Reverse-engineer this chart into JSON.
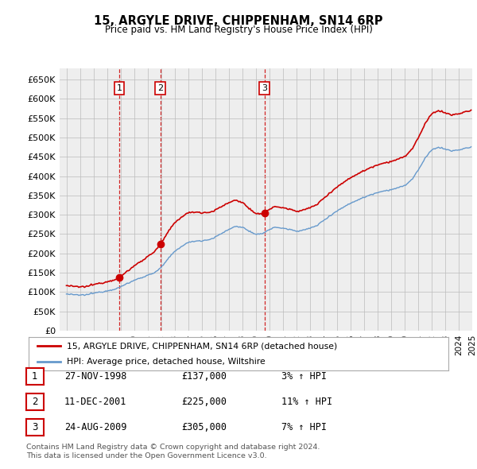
{
  "title": "15, ARGYLE DRIVE, CHIPPENHAM, SN14 6RP",
  "subtitle": "Price paid vs. HM Land Registry's House Price Index (HPI)",
  "legend_line1": "15, ARGYLE DRIVE, CHIPPENHAM, SN14 6RP (detached house)",
  "legend_line2": "HPI: Average price, detached house, Wiltshire",
  "sale_color": "#cc0000",
  "hpi_color": "#6699cc",
  "background_color": "#ffffff",
  "grid_color": "#cccccc",
  "transactions": [
    {
      "label": "1",
      "date_yr": 1998.91,
      "price": 137000,
      "hpi_pct": "3% ↑ HPI",
      "display": "27-NOV-1998",
      "price_display": "£137,000"
    },
    {
      "label": "2",
      "date_yr": 2001.95,
      "price": 225000,
      "hpi_pct": "11% ↑ HPI",
      "display": "11-DEC-2001",
      "price_display": "£225,000"
    },
    {
      "label": "3",
      "date_yr": 2009.64,
      "price": 305000,
      "hpi_pct": "7% ↑ HPI",
      "display": "24-AUG-2009",
      "price_display": "£305,000"
    }
  ],
  "footer_line1": "Contains HM Land Registry data © Crown copyright and database right 2024.",
  "footer_line2": "This data is licensed under the Open Government Licence v3.0.",
  "ylim": [
    0,
    680000
  ],
  "yticks": [
    0,
    50000,
    100000,
    150000,
    200000,
    250000,
    300000,
    350000,
    400000,
    450000,
    500000,
    550000,
    600000,
    650000
  ],
  "year_start": 1995,
  "year_end": 2025
}
